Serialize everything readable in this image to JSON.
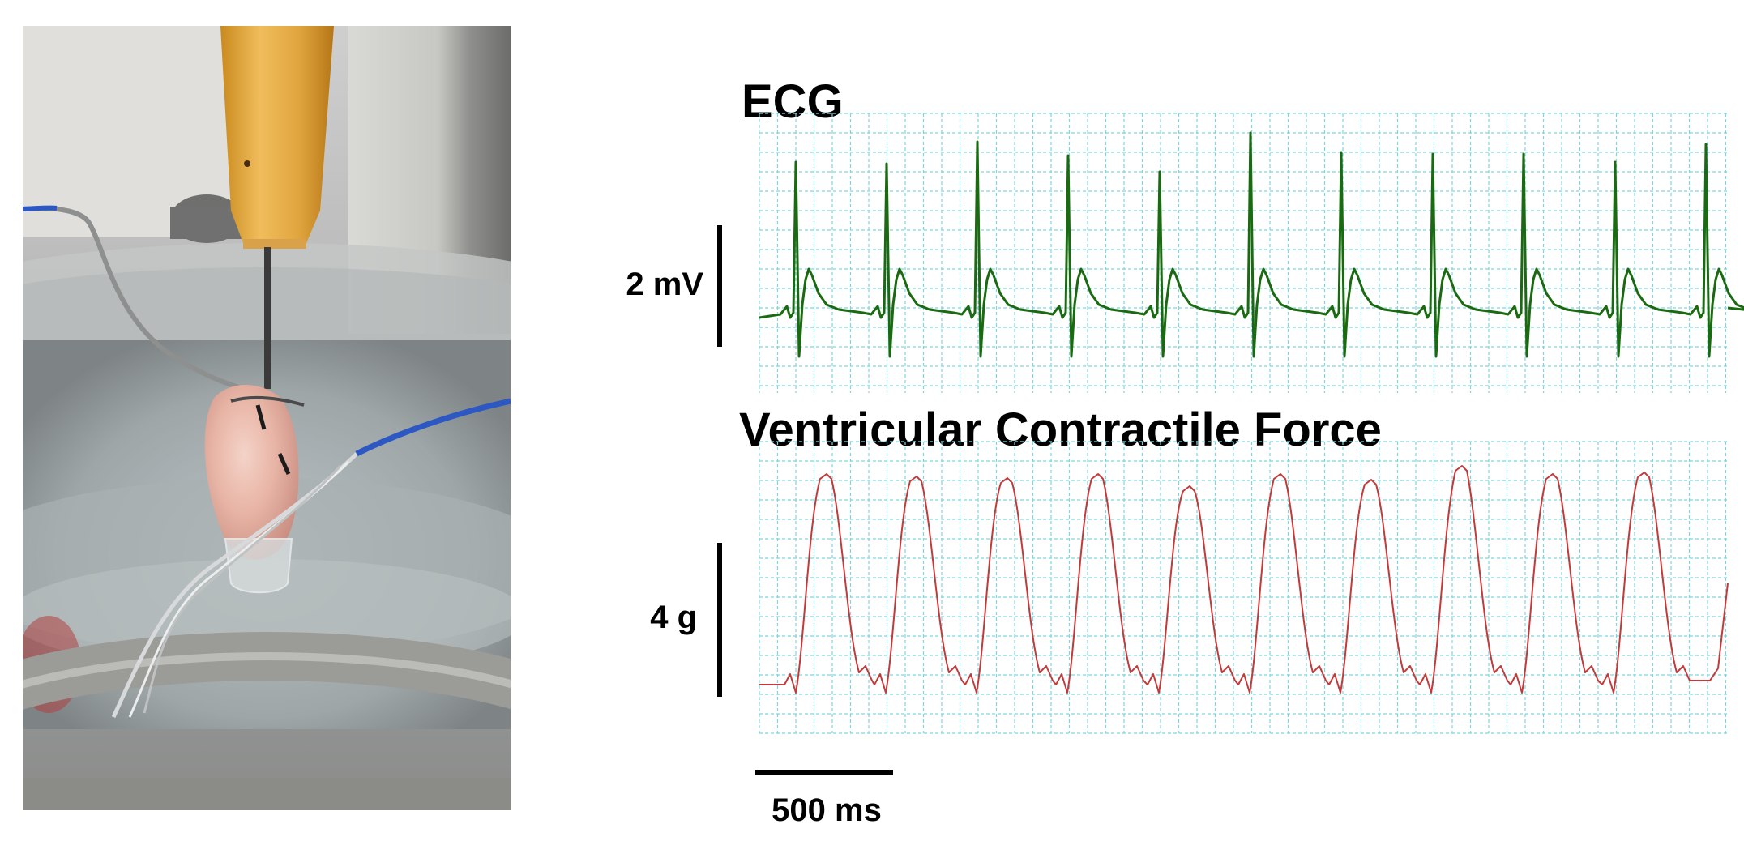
{
  "photo": {
    "description_icon": "isolated-heart-photo-icon"
  },
  "ecg": {
    "title": "ECG",
    "scale_label": "2 mV",
    "trace_color": "#1a6a12",
    "grid_color": "#7fd6e0"
  },
  "force": {
    "title": "Ventricular Contractile Force",
    "scale_label": "4 g",
    "trace_color": "#c43a3a",
    "grid_color": "#7fd6e0"
  },
  "time_scale": {
    "label": "500 ms"
  }
}
